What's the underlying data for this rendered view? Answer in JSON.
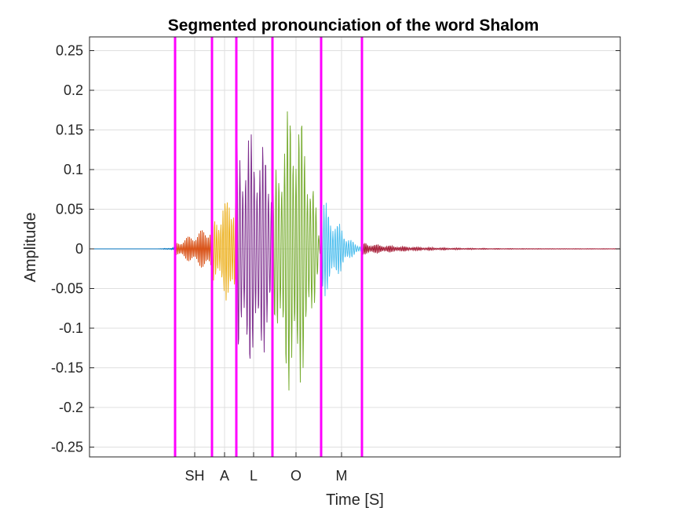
{
  "chart_data": {
    "type": "line",
    "title": "Segmented pronounciation of the word Shalom",
    "xlabel": "Time [S]",
    "ylabel": "Amplitude",
    "ylim": [
      -0.26,
      0.265
    ],
    "y_ticks": [
      0.25,
      0.2,
      0.15,
      0.1,
      0.05,
      0,
      -0.05,
      -0.1,
      -0.15,
      -0.2,
      -0.25
    ],
    "y_tick_labels": [
      "0.25",
      "0.2",
      "0.15",
      "0.1",
      "0.05",
      "0",
      "-0.05",
      "-0.1",
      "-0.15",
      "-0.2",
      "-0.25"
    ],
    "grid": true,
    "x_tick_labels": [
      "SH",
      "A",
      "L",
      "O",
      "M"
    ],
    "boundary_color": "#ff00ff",
    "series": [
      {
        "color": "#0072bd",
        "peak": 0.002
      },
      {
        "color": "#d95319",
        "peak": 0.03
      },
      {
        "color": "#edb120",
        "peak": 0.085
      },
      {
        "color": "#7e2f8e",
        "peak": 0.15
      },
      {
        "color": "#77ac30",
        "peak": 0.19
      },
      {
        "color": "#4dbeee",
        "peak": 0.07
      },
      {
        "color": "#a2142f",
        "peak": 0.008
      }
    ]
  }
}
